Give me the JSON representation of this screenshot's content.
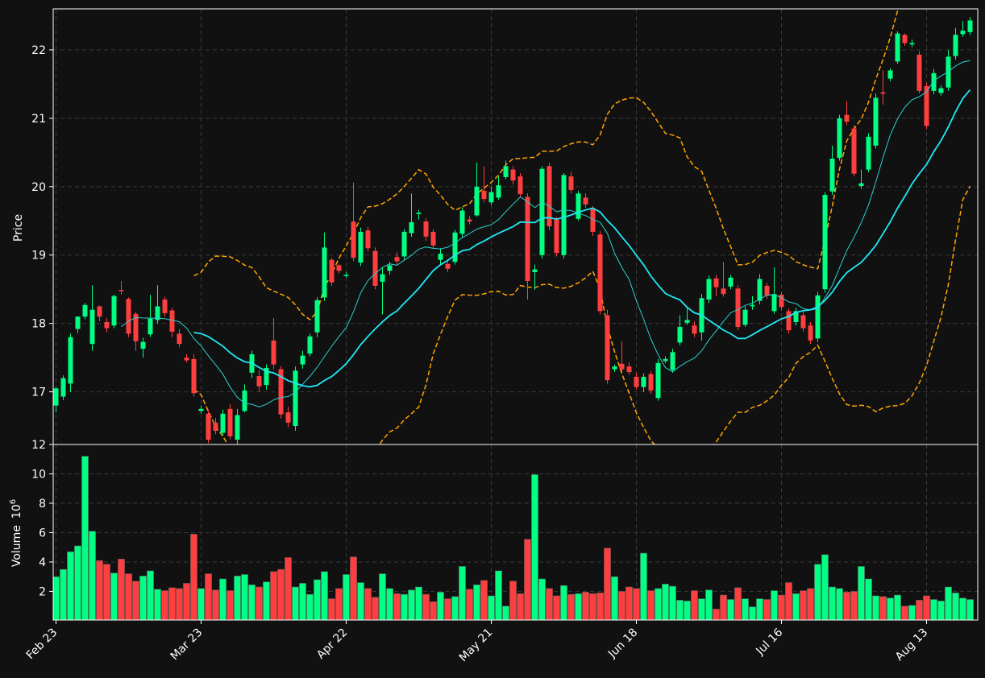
{
  "chart_data": [
    {
      "type": "candlestick",
      "title": "",
      "ylabel": "Price",
      "ylim": [
        16.23,
        22.6
      ],
      "y_ticks": [
        "17",
        "18",
        "19",
        "20",
        "21",
        "22"
      ],
      "x_ticks": [
        "Feb 23",
        "Mar 23",
        "Apr 22",
        "May 21",
        "Jun 18",
        "Jul 16",
        "Aug 13"
      ],
      "candles": [
        [
          16.8,
          17.05,
          16.7,
          17.07
        ],
        [
          16.93,
          17.2,
          16.88,
          17.24
        ],
        [
          17.12,
          17.8,
          17.0,
          17.85
        ],
        [
          17.92,
          18.1,
          17.86,
          18.1
        ],
        [
          18.1,
          18.27,
          18.06,
          18.3
        ],
        [
          17.7,
          18.2,
          17.6,
          18.56
        ],
        [
          18.25,
          18.1,
          18.03,
          18.26
        ],
        [
          18.02,
          17.93,
          17.87,
          18.08
        ],
        [
          17.97,
          18.4,
          17.93,
          18.42
        ],
        [
          18.49,
          18.48,
          18.42,
          18.62
        ],
        [
          18.36,
          17.85,
          17.8,
          18.38
        ],
        [
          18.14,
          17.74,
          17.6,
          18.17
        ],
        [
          17.63,
          17.73,
          17.5,
          17.79
        ],
        [
          17.84,
          18.07,
          17.8,
          18.42
        ],
        [
          18.05,
          18.25,
          18.0,
          18.56
        ],
        [
          18.35,
          18.15,
          18.1,
          18.39
        ],
        [
          18.19,
          17.88,
          17.8,
          18.23
        ],
        [
          17.85,
          17.7,
          17.65,
          17.92
        ],
        [
          17.5,
          17.46,
          17.43,
          17.55
        ],
        [
          17.48,
          16.98,
          16.93,
          17.55
        ],
        [
          16.72,
          16.75,
          16.68,
          16.8
        ],
        [
          16.68,
          16.3,
          16.25,
          16.74
        ],
        [
          16.55,
          16.43,
          16.38,
          16.62
        ],
        [
          16.4,
          16.68,
          16.36,
          16.74
        ],
        [
          16.75,
          16.35,
          16.3,
          16.82
        ],
        [
          16.3,
          16.66,
          16.22,
          16.75
        ],
        [
          16.72,
          17.02,
          16.7,
          17.11
        ],
        [
          17.28,
          17.55,
          17.2,
          17.6
        ],
        [
          17.23,
          17.08,
          17.0,
          17.32
        ],
        [
          17.1,
          17.35,
          17.03,
          17.4
        ],
        [
          17.75,
          17.4,
          17.33,
          18.08
        ],
        [
          17.33,
          16.67,
          16.61,
          17.38
        ],
        [
          16.7,
          16.55,
          16.48,
          16.78
        ],
        [
          16.5,
          17.31,
          16.43,
          17.37
        ],
        [
          17.4,
          17.53,
          17.34,
          17.6
        ],
        [
          17.56,
          17.81,
          17.52,
          17.85
        ],
        [
          17.87,
          18.34,
          17.8,
          18.38
        ],
        [
          18.38,
          19.11,
          18.33,
          19.33
        ],
        [
          18.93,
          18.6,
          18.55,
          18.96
        ],
        [
          18.85,
          18.77,
          18.73,
          18.87
        ],
        [
          18.7,
          18.71,
          18.67,
          18.75
        ],
        [
          19.49,
          18.96,
          18.91,
          20.06
        ],
        [
          18.89,
          19.34,
          18.84,
          19.4
        ],
        [
          19.36,
          19.1,
          19.05,
          19.41
        ],
        [
          19.06,
          18.55,
          18.5,
          19.11
        ],
        [
          18.61,
          18.72,
          18.13,
          18.82
        ],
        [
          18.77,
          18.85,
          18.71,
          18.9
        ],
        [
          18.97,
          18.91,
          18.86,
          19.04
        ],
        [
          18.98,
          19.34,
          18.92,
          19.38
        ],
        [
          19.32,
          19.48,
          19.27,
          19.9
        ],
        [
          19.6,
          19.62,
          19.52,
          19.66
        ],
        [
          19.49,
          19.27,
          19.21,
          19.54
        ],
        [
          19.34,
          19.14,
          19.09,
          19.38
        ],
        [
          18.93,
          19.02,
          18.85,
          19.1
        ],
        [
          18.87,
          18.8,
          18.75,
          18.91
        ],
        [
          18.9,
          19.33,
          18.86,
          19.37
        ],
        [
          19.31,
          19.65,
          19.26,
          19.7
        ],
        [
          19.52,
          19.49,
          19.45,
          19.57
        ],
        [
          19.58,
          20.0,
          19.56,
          20.35
        ],
        [
          19.94,
          19.82,
          19.77,
          20.3
        ],
        [
          19.77,
          19.92,
          19.73,
          20.0
        ],
        [
          19.84,
          20.02,
          19.81,
          20.15
        ],
        [
          20.14,
          20.3,
          20.11,
          20.38
        ],
        [
          20.25,
          20.09,
          20.03,
          20.3
        ],
        [
          20.15,
          19.89,
          19.84,
          20.2
        ],
        [
          19.85,
          18.62,
          18.35,
          19.9
        ],
        [
          18.75,
          18.79,
          18.49,
          18.86
        ],
        [
          19.0,
          20.26,
          18.95,
          20.3
        ],
        [
          20.3,
          19.42,
          19.36,
          20.35
        ],
        [
          19.52,
          19.03,
          18.98,
          19.56
        ],
        [
          19.0,
          20.17,
          18.95,
          20.2
        ],
        [
          20.15,
          19.95,
          19.9,
          20.22
        ],
        [
          19.53,
          19.9,
          19.5,
          19.94
        ],
        [
          19.84,
          19.74,
          19.69,
          19.9
        ],
        [
          19.68,
          19.34,
          19.28,
          19.72
        ],
        [
          19.3,
          18.18,
          18.13,
          19.35
        ],
        [
          18.12,
          17.17,
          17.12,
          18.2
        ],
        [
          17.33,
          17.37,
          17.29,
          17.4
        ],
        [
          17.41,
          17.33,
          17.29,
          17.74
        ],
        [
          17.37,
          17.29,
          17.25,
          17.43
        ],
        [
          17.22,
          17.07,
          17.03,
          17.28
        ],
        [
          17.07,
          17.22,
          17.0,
          17.27
        ],
        [
          17.26,
          17.02,
          16.97,
          17.3
        ],
        [
          16.91,
          17.42,
          16.87,
          17.48
        ],
        [
          17.45,
          17.48,
          17.42,
          17.52
        ],
        [
          17.32,
          17.58,
          17.28,
          17.63
        ],
        [
          17.72,
          17.95,
          17.68,
          18.12
        ],
        [
          18.01,
          18.05,
          17.98,
          18.25
        ],
        [
          17.97,
          17.85,
          17.8,
          18.03
        ],
        [
          17.87,
          18.37,
          17.75,
          18.43
        ],
        [
          18.35,
          18.65,
          18.3,
          18.7
        ],
        [
          18.66,
          18.53,
          18.4,
          18.71
        ],
        [
          18.51,
          18.43,
          18.39,
          18.9
        ],
        [
          18.54,
          18.67,
          18.5,
          18.71
        ],
        [
          18.51,
          17.95,
          17.9,
          18.56
        ],
        [
          17.98,
          18.2,
          17.95,
          18.25
        ],
        [
          18.25,
          18.27,
          18.2,
          18.4
        ],
        [
          18.33,
          18.65,
          18.28,
          18.72
        ],
        [
          18.55,
          18.41,
          18.36,
          18.59
        ],
        [
          18.18,
          18.43,
          18.14,
          18.82
        ],
        [
          18.42,
          18.24,
          18.19,
          18.46
        ],
        [
          18.18,
          17.9,
          17.85,
          18.22
        ],
        [
          18.02,
          18.18,
          17.97,
          18.23
        ],
        [
          18.12,
          17.93,
          17.88,
          18.17
        ],
        [
          17.97,
          17.75,
          17.7,
          18.02
        ],
        [
          17.78,
          18.41,
          17.73,
          18.46
        ],
        [
          18.5,
          19.88,
          18.45,
          19.92
        ],
        [
          19.93,
          20.41,
          19.88,
          20.6
        ],
        [
          20.42,
          21.0,
          20.38,
          21.05
        ],
        [
          21.05,
          20.95,
          20.9,
          21.25
        ],
        [
          20.85,
          20.19,
          20.15,
          20.9
        ],
        [
          20.01,
          20.05,
          19.97,
          20.25
        ],
        [
          20.25,
          20.73,
          20.21,
          20.78
        ],
        [
          20.6,
          21.3,
          20.56,
          21.36
        ],
        [
          21.38,
          21.36,
          21.2,
          21.7
        ],
        [
          21.58,
          21.7,
          21.54,
          21.73
        ],
        [
          21.83,
          22.24,
          21.8,
          22.27
        ],
        [
          22.22,
          22.1,
          22.06,
          22.24
        ],
        [
          22.08,
          22.1,
          22.04,
          22.15
        ],
        [
          21.93,
          21.4,
          21.36,
          21.98
        ],
        [
          21.47,
          20.89,
          20.84,
          21.52
        ],
        [
          21.4,
          21.66,
          21.35,
          21.72
        ],
        [
          21.37,
          21.44,
          21.33,
          21.48
        ],
        [
          21.45,
          21.9,
          21.4,
          22.0
        ],
        [
          21.91,
          22.22,
          21.86,
          22.32
        ],
        [
          22.23,
          22.28,
          22.19,
          22.42
        ],
        [
          22.26,
          22.43,
          22.22,
          22.48
        ]
      ],
      "volume": {
        "ylabel": "Volume",
        "unit_exponent": "6",
        "ylim": [
          0.05,
          12.0
        ],
        "y_ticks": [
          "2",
          "4",
          "6",
          "8",
          "10",
          "12"
        ],
        "values": [
          3.0,
          3.5,
          4.7,
          5.1,
          11.2,
          6.1,
          4.1,
          3.85,
          3.25,
          4.2,
          3.2,
          2.7,
          3.05,
          3.4,
          2.15,
          2.05,
          2.25,
          2.2,
          2.55,
          5.9,
          2.2,
          3.2,
          2.1,
          2.85,
          2.05,
          3.05,
          3.15,
          2.45,
          2.3,
          2.65,
          3.35,
          3.5,
          4.3,
          2.3,
          2.55,
          1.8,
          2.8,
          3.35,
          1.5,
          2.2,
          3.15,
          4.35,
          2.6,
          2.2,
          1.6,
          3.2,
          2.2,
          1.85,
          1.8,
          2.1,
          2.3,
          1.8,
          1.3,
          1.95,
          1.5,
          1.65,
          3.7,
          2.15,
          2.45,
          2.75,
          1.7,
          3.4,
          1.0,
          2.7,
          1.85,
          5.55,
          9.95,
          2.85,
          2.2,
          1.7,
          2.4,
          1.8,
          1.85,
          1.95,
          1.85,
          1.9,
          4.95,
          3.0,
          2.0,
          2.3,
          2.2,
          4.6,
          2.05,
          2.2,
          2.5,
          2.35,
          1.4,
          1.35,
          2.05,
          1.5,
          2.1,
          0.8,
          1.75,
          1.45,
          2.25,
          1.5,
          0.95,
          1.5,
          1.45,
          2.05,
          1.75,
          2.6,
          1.85,
          2.05,
          2.2,
          3.85,
          4.5,
          2.3,
          2.2,
          1.95,
          2.0,
          3.7,
          2.85,
          1.7,
          1.65,
          1.55,
          1.75,
          1.0,
          1.05,
          1.4,
          1.7,
          1.45,
          1.35,
          2.3,
          1.9,
          1.55,
          1.45
        ]
      }
    }
  ],
  "colors": {
    "background": "#111111",
    "up": "#00ff83",
    "down": "#ff3f3f",
    "ma_short": "#2ad1cf",
    "ma_long": "#1ee9f5",
    "bands": "#ffa500",
    "grid": "#3a3a3a",
    "frame": "#ffffff"
  }
}
